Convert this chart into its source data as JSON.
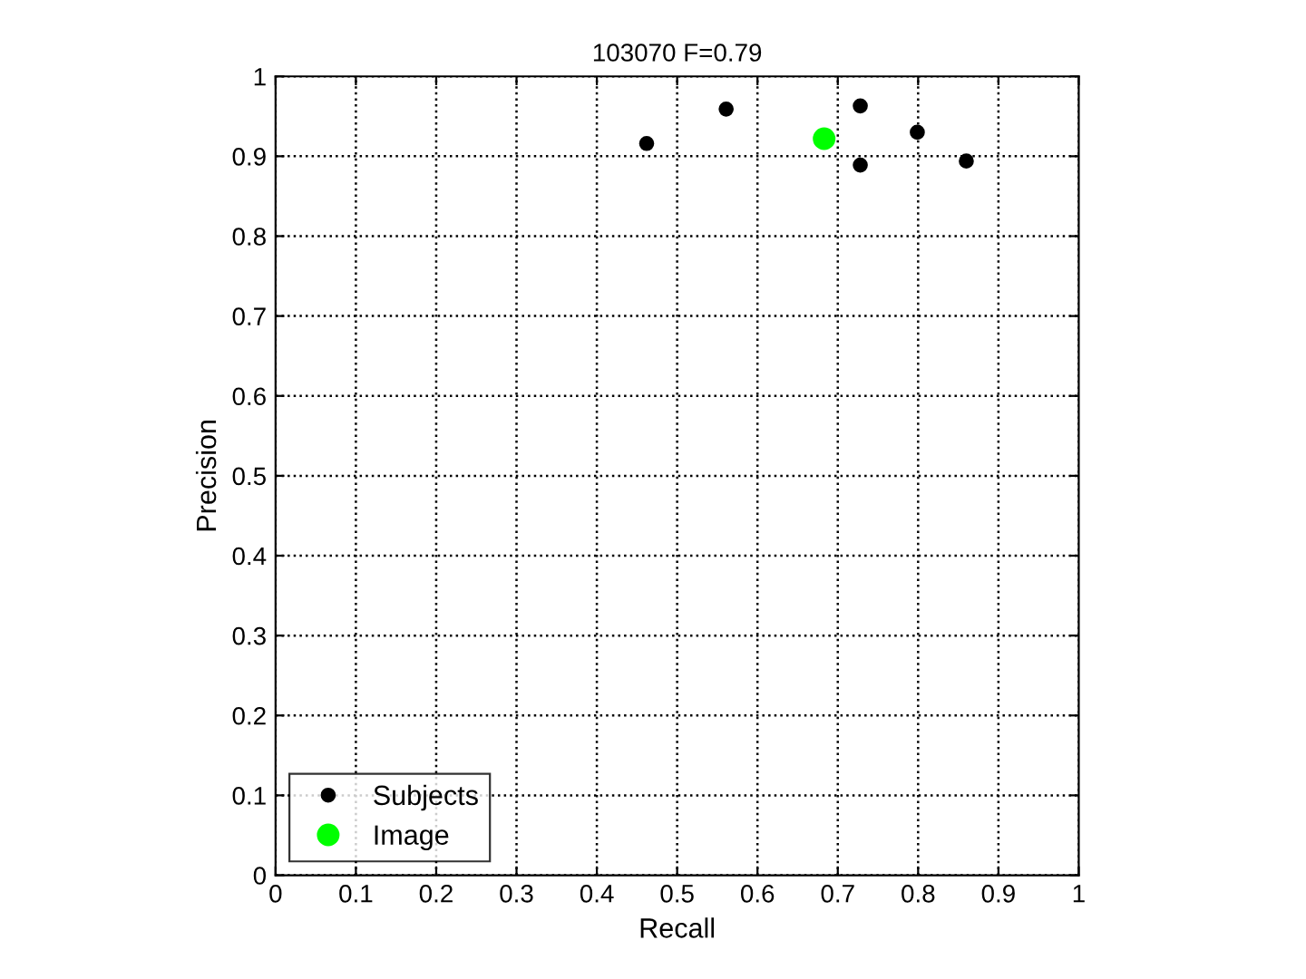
{
  "chart_data": {
    "type": "scatter",
    "title": "103070 F=0.79",
    "xlabel": "Recall",
    "ylabel": "Precision",
    "series": [
      {
        "name": "Subjects",
        "color": "#000000",
        "x": [
          0.462,
          0.561,
          0.728,
          0.728,
          0.799,
          0.86
        ],
        "values": [
          0.916,
          0.959,
          0.963,
          0.889,
          0.93,
          0.894
        ]
      },
      {
        "name": "Image",
        "color": "#00ff00",
        "x": [
          0.683
        ],
        "values": [
          0.922
        ]
      }
    ],
    "xlim": [
      0,
      1
    ],
    "ylim": [
      0,
      1
    ],
    "xticks": [
      0,
      0.1,
      0.2,
      0.3,
      0.4,
      0.5,
      0.6,
      0.7,
      0.8,
      0.9,
      1
    ],
    "yticks": [
      0,
      0.1,
      0.2,
      0.3,
      0.4,
      0.5,
      0.6,
      0.7,
      0.8,
      0.9,
      1
    ],
    "grid": true,
    "legend": "bottom left",
    "marker": "circle"
  }
}
